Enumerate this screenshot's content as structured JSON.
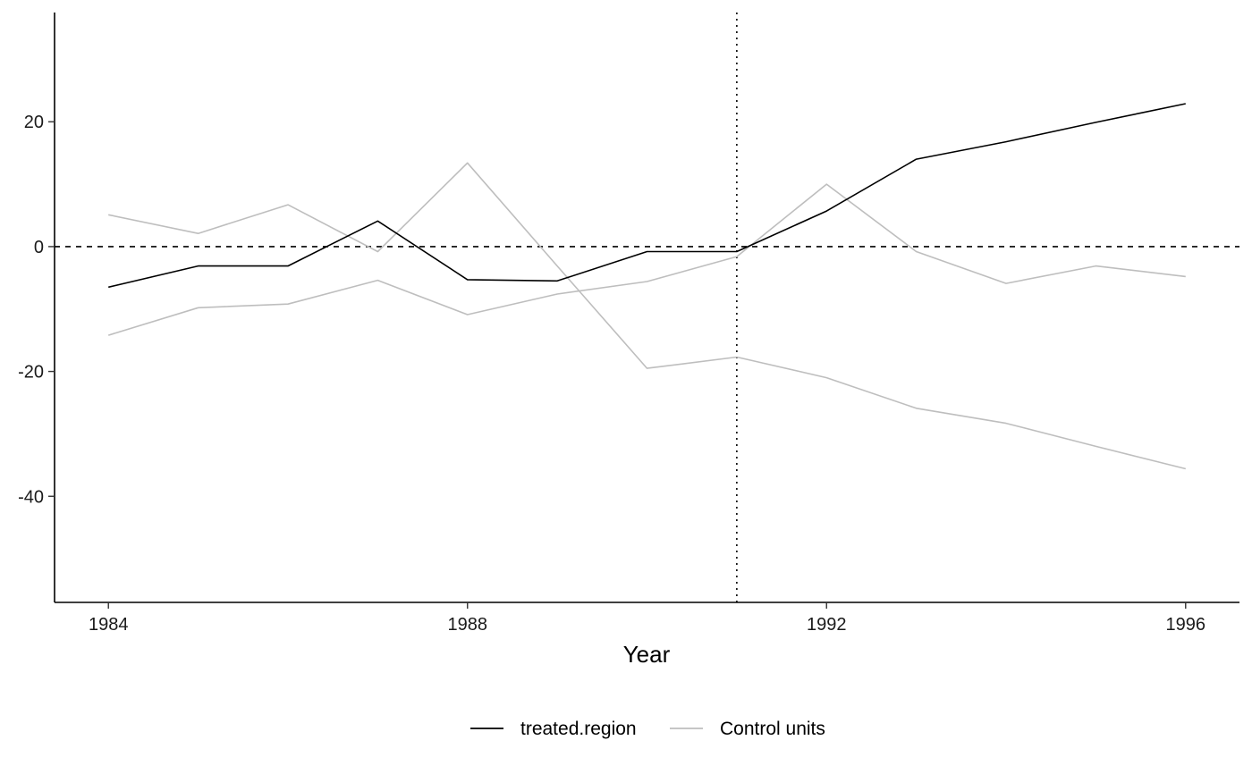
{
  "chart_data": {
    "type": "line",
    "xlabel": "Year",
    "ylabel": "",
    "xlim": [
      1983.4,
      1996.6
    ],
    "ylim": [
      -57,
      37.5
    ],
    "x_ticks": [
      1984,
      1988,
      1992,
      1996
    ],
    "y_ticks": [
      -40,
      -20,
      0,
      20
    ],
    "hline": {
      "y": 0,
      "style": "dashed"
    },
    "vline": {
      "x": 1991,
      "style": "dotted"
    },
    "legend_position": "bottom",
    "legend": [
      {
        "label": "treated.region",
        "color": "#000000"
      },
      {
        "label": "Control units",
        "color": "#bebebe"
      }
    ],
    "x": [
      1984,
      1985,
      1986,
      1987,
      1988,
      1989,
      1990,
      1991,
      1992,
      1993,
      1994,
      1995,
      1996
    ],
    "series": [
      {
        "name": "treated.region",
        "color": "#000000",
        "values": [
          -6.5,
          -3.1,
          -3.1,
          4.1,
          -5.3,
          -5.5,
          -0.8,
          -0.8,
          5.7,
          14.0,
          16.8,
          19.9,
          22.9
        ]
      },
      {
        "name": "Control units",
        "color": "#bebebe",
        "values": [
          5.1,
          2.1,
          6.7,
          -0.8,
          13.4,
          -3.1,
          -19.5,
          -17.7,
          -21.0,
          -25.9,
          -28.3,
          -32.0,
          -35.6
        ]
      },
      {
        "name": "Control units",
        "color": "#bebebe",
        "values": [
          -14.2,
          -9.8,
          -9.2,
          -5.4,
          -10.9,
          -7.6,
          -5.6,
          -1.6,
          10.0,
          -0.8,
          -5.9,
          -3.1,
          -4.8
        ]
      }
    ]
  }
}
